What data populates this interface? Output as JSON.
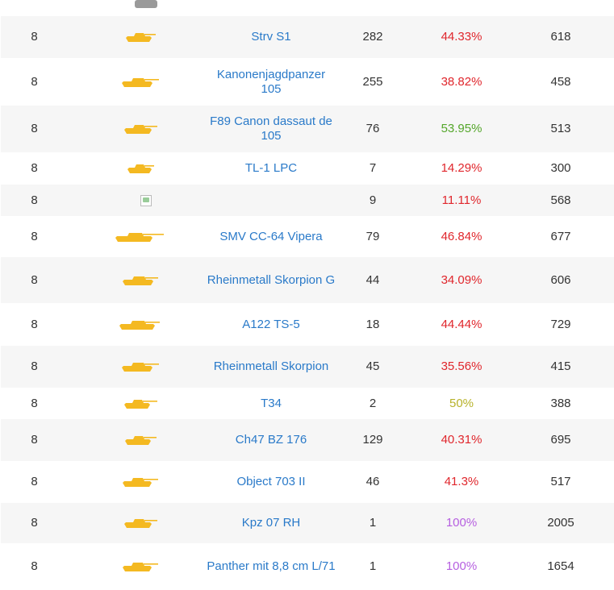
{
  "colors": {
    "link": "#2a7ac9",
    "wr_red": "#e0262c",
    "wr_green": "#54a62a",
    "wr_yellow": "#b7b22a",
    "wr_purple": "#b65fe0",
    "tank_icon": "#f4b921",
    "tank_icon_grey": "#9a9a9a"
  },
  "rows": [
    {
      "tier": "8",
      "icon": "tank-silhouette-icon",
      "name": "Strv S1",
      "battles": "282",
      "winrate": "44.33%",
      "winrate_color": "#e0262c",
      "damage": "618"
    },
    {
      "tier": "8",
      "icon": "tank-silhouette-icon",
      "name": "Kanonenjagdpanzer 105",
      "battles": "255",
      "winrate": "38.82%",
      "winrate_color": "#e0262c",
      "damage": "458"
    },
    {
      "tier": "8",
      "icon": "tank-silhouette-icon",
      "name": "F89 Canon dassaut de 105",
      "battles": "76",
      "winrate": "53.95%",
      "winrate_color": "#54a62a",
      "damage": "513"
    },
    {
      "tier": "8",
      "icon": "tank-silhouette-icon",
      "name": "TL-1 LPC",
      "battles": "7",
      "winrate": "14.29%",
      "winrate_color": "#e0262c",
      "damage": "300"
    },
    {
      "tier": "8",
      "icon": "broken-image-icon",
      "name": "",
      "battles": "9",
      "winrate": "11.11%",
      "winrate_color": "#e0262c",
      "damage": "568"
    },
    {
      "tier": "8",
      "icon": "tank-silhouette-icon",
      "name": "SMV CC-64 Vipera",
      "battles": "79",
      "winrate": "46.84%",
      "winrate_color": "#e0262c",
      "damage": "677"
    },
    {
      "tier": "8",
      "icon": "tank-silhouette-icon",
      "name": "Rheinmetall Skorpion G",
      "battles": "44",
      "winrate": "34.09%",
      "winrate_color": "#e0262c",
      "damage": "606"
    },
    {
      "tier": "8",
      "icon": "tank-silhouette-icon",
      "name": "A122 TS-5",
      "battles": "18",
      "winrate": "44.44%",
      "winrate_color": "#e0262c",
      "damage": "729"
    },
    {
      "tier": "8",
      "icon": "tank-silhouette-icon",
      "name": "Rheinmetall Skorpion",
      "battles": "45",
      "winrate": "35.56%",
      "winrate_color": "#e0262c",
      "damage": "415"
    },
    {
      "tier": "8",
      "icon": "tank-silhouette-icon",
      "name": "T34",
      "battles": "2",
      "winrate": "50%",
      "winrate_color": "#b7b22a",
      "damage": "388"
    },
    {
      "tier": "8",
      "icon": "tank-silhouette-icon",
      "name": "Ch47 BZ 176",
      "battles": "129",
      "winrate": "40.31%",
      "winrate_color": "#e0262c",
      "damage": "695"
    },
    {
      "tier": "8",
      "icon": "tank-silhouette-icon",
      "name": "Object 703 II",
      "battles": "46",
      "winrate": "41.3%",
      "winrate_color": "#e0262c",
      "damage": "517"
    },
    {
      "tier": "8",
      "icon": "tank-silhouette-icon",
      "name": "Kpz 07 RH",
      "battles": "1",
      "winrate": "100%",
      "winrate_color": "#b65fe0",
      "damage": "2005"
    },
    {
      "tier": "8",
      "icon": "tank-silhouette-icon",
      "name": "Panther mit 8,8 cm L/71",
      "battles": "1",
      "winrate": "100%",
      "winrate_color": "#b65fe0",
      "damage": "1654"
    }
  ]
}
